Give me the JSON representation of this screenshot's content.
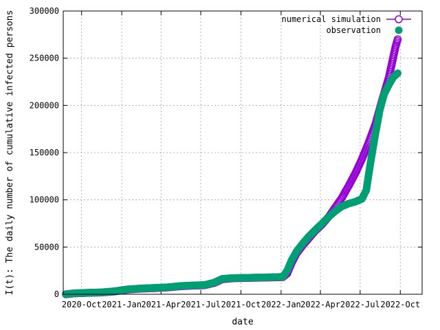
{
  "chart_data": {
    "type": "scatter",
    "title": "",
    "xlabel": "date",
    "ylabel": "I(t): The daily number of cumulative infected persons",
    "x_range": [
      "2020-08-20",
      "2022-11-20"
    ],
    "ylim": [
      0,
      300000
    ],
    "grid": true,
    "legend_position": "top-right",
    "x_ticks": [
      {
        "date": "2020-10-01",
        "label": "2020-Oct"
      },
      {
        "date": "2021-01-01",
        "label": "2021-Jan"
      },
      {
        "date": "2021-04-01",
        "label": "2021-Apr"
      },
      {
        "date": "2021-07-01",
        "label": "2021-Jul"
      },
      {
        "date": "2021-10-01",
        "label": "2021-Oct"
      },
      {
        "date": "2022-01-01",
        "label": "2022-Jan"
      },
      {
        "date": "2022-04-01",
        "label": "2022-Apr"
      },
      {
        "date": "2022-07-01",
        "label": "2022-Jul"
      },
      {
        "date": "2022-10-01",
        "label": "2022-Oct"
      }
    ],
    "y_ticks": [
      0,
      50000,
      100000,
      150000,
      200000,
      250000,
      300000
    ],
    "series": [
      {
        "name": "numerical simulation",
        "color": "#9400d3",
        "marker": "open-circle",
        "points": [
          [
            "2020-08-26",
            0
          ],
          [
            "2020-09-15",
            1000
          ],
          [
            "2020-10-15",
            1500
          ],
          [
            "2020-11-15",
            1900
          ],
          [
            "2020-12-15",
            3000
          ],
          [
            "2021-01-15",
            5000
          ],
          [
            "2021-02-15",
            6000
          ],
          [
            "2021-03-15",
            6500
          ],
          [
            "2021-04-15",
            7200
          ],
          [
            "2021-05-15",
            8500
          ],
          [
            "2021-06-15",
            9200
          ],
          [
            "2021-07-10",
            9600
          ],
          [
            "2021-08-01",
            12000
          ],
          [
            "2021-08-20",
            16000
          ],
          [
            "2021-09-15",
            17000
          ],
          [
            "2021-10-15",
            17300
          ],
          [
            "2021-11-15",
            17600
          ],
          [
            "2021-12-15",
            17900
          ],
          [
            "2022-01-05",
            18200
          ],
          [
            "2022-01-15",
            22000
          ],
          [
            "2022-01-25",
            33000
          ],
          [
            "2022-02-05",
            43000
          ],
          [
            "2022-02-20",
            52000
          ],
          [
            "2022-03-05",
            59000
          ],
          [
            "2022-03-20",
            67000
          ],
          [
            "2022-04-05",
            74000
          ],
          [
            "2022-04-20",
            82000
          ],
          [
            "2022-05-05",
            92000
          ],
          [
            "2022-05-20",
            102000
          ],
          [
            "2022-06-05",
            115000
          ],
          [
            "2022-06-20",
            128000
          ],
          [
            "2022-07-05",
            143000
          ],
          [
            "2022-07-20",
            160000
          ],
          [
            "2022-08-05",
            180000
          ],
          [
            "2022-08-20",
            205000
          ],
          [
            "2022-09-05",
            230000
          ],
          [
            "2022-09-20",
            262000
          ],
          [
            "2022-09-25",
            270000
          ]
        ]
      },
      {
        "name": "observation",
        "color": "#009e73",
        "marker": "filled-circle",
        "points": [
          [
            "2020-08-26",
            0
          ],
          [
            "2020-09-15",
            1100
          ],
          [
            "2020-10-15",
            1600
          ],
          [
            "2020-11-15",
            2000
          ],
          [
            "2020-12-15",
            3200
          ],
          [
            "2021-01-15",
            5300
          ],
          [
            "2021-02-15",
            6200
          ],
          [
            "2021-03-15",
            6800
          ],
          [
            "2021-04-15",
            7400
          ],
          [
            "2021-05-15",
            8800
          ],
          [
            "2021-06-15",
            9500
          ],
          [
            "2021-07-10",
            9800
          ],
          [
            "2021-08-01",
            12500
          ],
          [
            "2021-08-20",
            16500
          ],
          [
            "2021-09-15",
            17200
          ],
          [
            "2021-10-15",
            17500
          ],
          [
            "2021-11-15",
            17800
          ],
          [
            "2021-12-15",
            18100
          ],
          [
            "2022-01-05",
            18500
          ],
          [
            "2022-01-15",
            25000
          ],
          [
            "2022-01-25",
            36000
          ],
          [
            "2022-02-05",
            45000
          ],
          [
            "2022-02-20",
            54000
          ],
          [
            "2022-03-05",
            61000
          ],
          [
            "2022-03-20",
            68000
          ],
          [
            "2022-04-05",
            75000
          ],
          [
            "2022-04-20",
            82000
          ],
          [
            "2022-05-05",
            88000
          ],
          [
            "2022-05-20",
            93000
          ],
          [
            "2022-06-05",
            96000
          ],
          [
            "2022-06-20",
            98000
          ],
          [
            "2022-07-05",
            101000
          ],
          [
            "2022-07-15",
            110000
          ],
          [
            "2022-07-25",
            140000
          ],
          [
            "2022-08-05",
            170000
          ],
          [
            "2022-08-15",
            195000
          ],
          [
            "2022-08-25",
            212000
          ],
          [
            "2022-09-05",
            222000
          ],
          [
            "2022-09-15",
            230000
          ],
          [
            "2022-09-25",
            234000
          ]
        ]
      }
    ]
  }
}
